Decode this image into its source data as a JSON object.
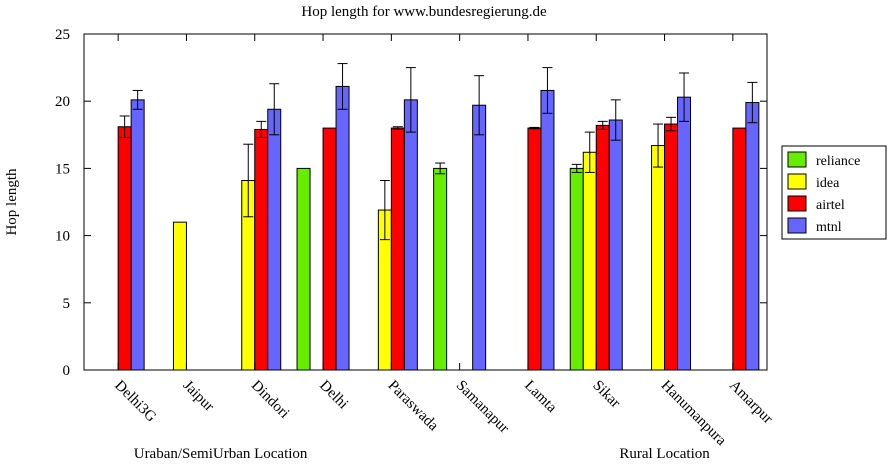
{
  "chart_data": {
    "type": "bar",
    "title": "Hop length for www.bundesregierung.de",
    "xlabel": "",
    "ylabel": "Hop length",
    "ylim": [
      0,
      25
    ],
    "yticks": [
      0,
      5,
      10,
      15,
      20,
      25
    ],
    "grid": false,
    "legend_position": "right",
    "categories": [
      "Delhi3G",
      "Jaipur",
      "Dindori",
      "Delhi",
      "Paraswada",
      "Samanapur",
      "Lamta",
      "Sikar",
      "Hanumanpura",
      "Amarpur"
    ],
    "group_labels": [
      {
        "text": "Uraban/SemiUrban Location",
        "span": [
          "Delhi3G",
          "Delhi"
        ]
      },
      {
        "text": "Rural Location",
        "span": [
          "Sikar",
          "Amarpur"
        ]
      }
    ],
    "series": [
      {
        "name": "reliance",
        "color": "#66ee00",
        "values": [
          null,
          null,
          null,
          15.0,
          null,
          15.0,
          null,
          15.0,
          null,
          null
        ],
        "errors": [
          null,
          null,
          null,
          0,
          null,
          0.4,
          null,
          0.3,
          null,
          null
        ]
      },
      {
        "name": "idea",
        "color": "#ffff00",
        "values": [
          null,
          11.0,
          14.1,
          null,
          11.9,
          null,
          null,
          16.2,
          16.7,
          null
        ],
        "errors": [
          null,
          0,
          2.7,
          null,
          2.2,
          null,
          null,
          1.5,
          1.6,
          null
        ]
      },
      {
        "name": "airtel",
        "color": "#ff0000",
        "values": [
          18.1,
          null,
          17.9,
          18.0,
          18.0,
          null,
          18.0,
          18.2,
          18.3,
          18.0
        ],
        "errors": [
          0.8,
          null,
          0.6,
          0,
          0.1,
          null,
          0.05,
          0.3,
          0.5,
          0
        ]
      },
      {
        "name": "mtnl",
        "color": "#6666ff",
        "values": [
          20.1,
          null,
          19.4,
          21.1,
          20.1,
          19.7,
          20.8,
          18.6,
          20.3,
          19.9
        ],
        "errors": [
          0.7,
          null,
          1.9,
          1.7,
          2.4,
          2.2,
          1.7,
          1.5,
          1.8,
          1.5
        ]
      }
    ]
  }
}
